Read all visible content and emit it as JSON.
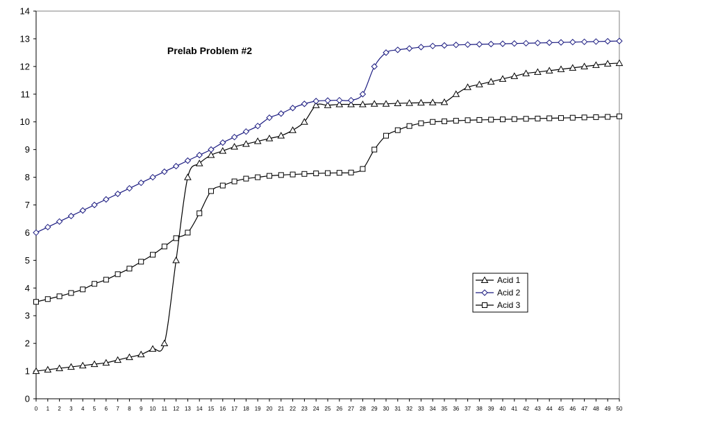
{
  "chart_data": {
    "type": "line",
    "title": "Prelab Problem #2",
    "xlabel": "",
    "ylabel": "",
    "xlim": [
      0,
      50
    ],
    "ylim": [
      0,
      14
    ],
    "x": [
      0,
      1,
      2,
      3,
      4,
      5,
      6,
      7,
      8,
      9,
      10,
      11,
      12,
      13,
      14,
      15,
      16,
      17,
      18,
      19,
      20,
      21,
      22,
      23,
      24,
      25,
      26,
      27,
      28,
      29,
      30,
      31,
      32,
      33,
      34,
      35,
      36,
      37,
      38,
      39,
      40,
      41,
      42,
      43,
      44,
      45,
      46,
      47,
      48,
      49,
      50
    ],
    "x_ticks": [
      "0",
      "1",
      "2",
      "3",
      "4",
      "5",
      "6",
      "7",
      "8",
      "9",
      "10",
      "11",
      "12",
      "13",
      "14",
      "15",
      "16",
      "17",
      "18",
      "19",
      "20",
      "21",
      "22",
      "23",
      "24",
      "25",
      "26",
      "27",
      "28",
      "29",
      "30",
      "31",
      "32",
      "33",
      "34",
      "35",
      "36",
      "37",
      "38",
      "39",
      "40",
      "41",
      "42",
      "43",
      "44",
      "45",
      "46",
      "47",
      "48",
      "49",
      "50"
    ],
    "y_ticks": [
      "0",
      "1",
      "2",
      "3",
      "4",
      "5",
      "6",
      "7",
      "8",
      "9",
      "10",
      "11",
      "12",
      "13",
      "14"
    ],
    "grid": false,
    "legend_position": "right-middle",
    "series": [
      {
        "name": "Acid 1",
        "marker": "triangle",
        "color": "#000000",
        "values": [
          1.0,
          1.05,
          1.1,
          1.15,
          1.2,
          1.25,
          1.3,
          1.4,
          1.5,
          1.6,
          1.8,
          2.0,
          5.0,
          8.0,
          8.5,
          8.8,
          8.95,
          9.1,
          9.2,
          9.3,
          9.4,
          9.5,
          9.7,
          10.0,
          10.6,
          10.6,
          10.63,
          10.63,
          10.63,
          10.65,
          10.65,
          10.67,
          10.68,
          10.69,
          10.7,
          10.71,
          11.0,
          11.25,
          11.35,
          11.45,
          11.55,
          11.65,
          11.75,
          11.8,
          11.85,
          11.9,
          11.95,
          12.0,
          12.05,
          12.1,
          12.12
        ]
      },
      {
        "name": "Acid 2",
        "marker": "diamond",
        "color": "#1a1a80",
        "values": [
          6.0,
          6.2,
          6.4,
          6.6,
          6.8,
          7.0,
          7.2,
          7.4,
          7.6,
          7.8,
          8.0,
          8.2,
          8.4,
          8.6,
          8.8,
          9.0,
          9.25,
          9.45,
          9.65,
          9.85,
          10.15,
          10.3,
          10.5,
          10.65,
          10.75,
          10.77,
          10.78,
          10.78,
          11.0,
          12.0,
          12.5,
          12.6,
          12.65,
          12.7,
          12.74,
          12.76,
          12.78,
          12.79,
          12.8,
          12.81,
          12.82,
          12.83,
          12.84,
          12.85,
          12.86,
          12.87,
          12.88,
          12.89,
          12.9,
          12.91,
          12.92
        ]
      },
      {
        "name": "Acid 3",
        "marker": "square",
        "color": "#000000",
        "values": [
          3.5,
          3.6,
          3.7,
          3.82,
          3.95,
          4.15,
          4.3,
          4.5,
          4.7,
          4.95,
          5.2,
          5.5,
          5.8,
          6.0,
          6.7,
          7.5,
          7.7,
          7.85,
          7.95,
          8.0,
          8.05,
          8.08,
          8.1,
          8.12,
          8.14,
          8.15,
          8.16,
          8.17,
          8.3,
          9.0,
          9.5,
          9.7,
          9.85,
          9.95,
          10.0,
          10.02,
          10.04,
          10.06,
          10.07,
          10.08,
          10.09,
          10.1,
          10.11,
          10.12,
          10.13,
          10.14,
          10.15,
          10.16,
          10.17,
          10.18,
          10.2
        ]
      }
    ]
  }
}
